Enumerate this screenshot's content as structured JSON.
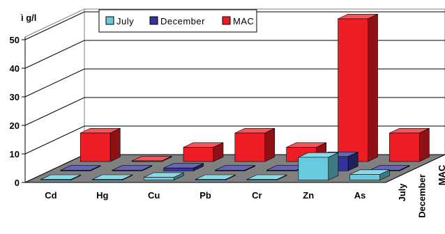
{
  "chart_data": {
    "type": "bar",
    "subtype": "3d-clustered-columns",
    "ylabel": "ì g/l",
    "ylim": [
      0,
      50
    ],
    "yticks": [
      0,
      10,
      20,
      30,
      40,
      50
    ],
    "categories": [
      "Cd",
      "Hg",
      "Cu",
      "Pb",
      "Cr",
      "Zn",
      "As"
    ],
    "series": [
      {
        "name": "July",
        "color": "#66CCDD",
        "values": [
          0,
          0,
          1,
          0,
          0,
          8,
          2
        ]
      },
      {
        "name": "December",
        "color": "#333399",
        "values": [
          0,
          0,
          1,
          0,
          0,
          5,
          0
        ]
      },
      {
        "name": "MAC",
        "color": "#EE1C24",
        "values": [
          10,
          0,
          5,
          10,
          5,
          50,
          10
        ]
      }
    ],
    "depth_labels": [
      "July",
      "December",
      "MAC"
    ],
    "grid": true,
    "legend": "top-center"
  }
}
